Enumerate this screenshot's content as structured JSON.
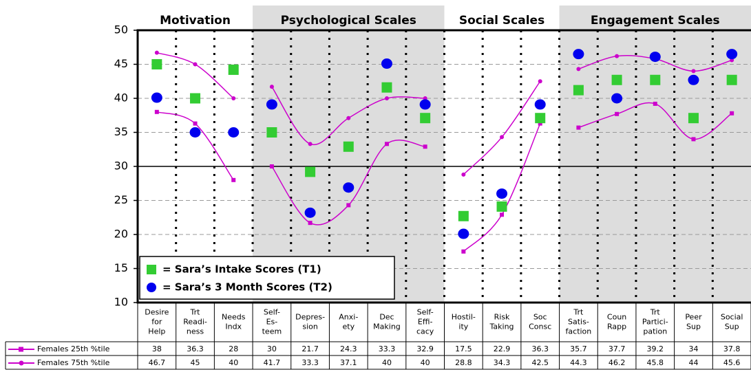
{
  "chart_data": {
    "type": "line",
    "groups": [
      {
        "label": "Motivation",
        "count": 3,
        "shaded": false
      },
      {
        "label": "Psychological Scales",
        "count": 5,
        "shaded": true
      },
      {
        "label": "Social Scales",
        "count": 3,
        "shaded": false
      },
      {
        "label": "Engagement Scales",
        "count": 5,
        "shaded": true
      }
    ],
    "categories": [
      "Desire\nfor\nHelp",
      "Trt\nReadi-\nness",
      "Needs\nIndx",
      "Self-\nEs-\nteem",
      "Depres-\nsion",
      "Anxi-\nety",
      "Dec\nMaking",
      "Self-\nEffi-\ncacy",
      "Hostil-\nity",
      "Risk\nTaking",
      "Soc\nConsc",
      "Trt\nSatis-\nfaction",
      "Coun\nRapp",
      "Trt\nPartici-\npation",
      "Peer\nSup",
      "Social\nSup"
    ],
    "series": [
      {
        "name": "Females 25th %tile",
        "color": "#cc00cc",
        "marker": "square",
        "values": [
          38,
          36.3,
          28,
          30,
          21.7,
          24.3,
          33.3,
          32.9,
          17.5,
          22.9,
          36.3,
          35.7,
          37.7,
          39.2,
          34,
          37.8
        ]
      },
      {
        "name": "Females 75th %tile",
        "color": "#cc00cc",
        "marker": "circle",
        "values": [
          46.7,
          45,
          40,
          41.7,
          33.3,
          37.1,
          40,
          40,
          28.8,
          34.3,
          42.5,
          44.3,
          46.2,
          45.8,
          44,
          45.6
        ]
      }
    ],
    "points": [
      {
        "name": "= Sara’s Intake Scores (T1)",
        "color": "#33cc33",
        "marker": "square",
        "values": [
          45,
          40,
          44.2,
          35,
          29.2,
          32.9,
          41.6,
          37.1,
          22.7,
          24.1,
          37.1,
          41.2,
          42.7,
          42.7,
          37.1,
          42.7
        ]
      },
      {
        "name": "= Sara’s 3 Month Scores (T2)",
        "color": "#0000ee",
        "marker": "circle",
        "values": [
          40.1,
          35,
          35,
          39.1,
          23.2,
          26.9,
          45.1,
          39.1,
          20.1,
          26,
          39.1,
          46.5,
          40,
          46.1,
          42.7,
          46.5
        ]
      }
    ],
    "ylim": [
      10,
      50
    ],
    "yticks": [
      10,
      15,
      20,
      25,
      30,
      35,
      40,
      45,
      50
    ],
    "reference_line": 30,
    "grid": true
  }
}
